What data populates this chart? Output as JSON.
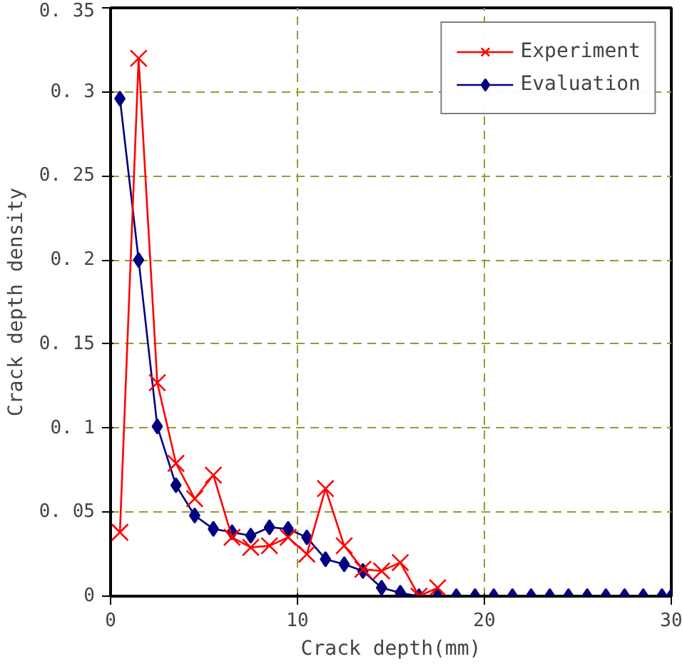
{
  "chart_data": {
    "type": "line",
    "xlabel": "Crack depth(mm)",
    "ylabel": "Crack depth density",
    "xlim": [
      0,
      30
    ],
    "ylim": [
      0,
      0.35
    ],
    "xticks": [
      0,
      10,
      20,
      30
    ],
    "yticks": [
      0,
      0.05,
      0.1,
      0.15,
      0.2,
      0.25,
      0.3,
      0.35
    ],
    "grid": true,
    "legend": "top right",
    "series": [
      {
        "name": "Experiment",
        "color": "#ff0000",
        "marker": "cross",
        "x": [
          0.5,
          1.5,
          2.5,
          3.5,
          4.5,
          5.5,
          6.5,
          7.5,
          8.5,
          9.5,
          10.5,
          11.5,
          12.5,
          13.5,
          14.5,
          15.5,
          16.5,
          17.5
        ],
        "values": [
          0.038,
          0.32,
          0.127,
          0.079,
          0.058,
          0.072,
          0.035,
          0.029,
          0.03,
          0.035,
          0.025,
          0.064,
          0.03,
          0.016,
          0.015,
          0.02,
          0,
          0.005
        ]
      },
      {
        "name": "Evaluation",
        "color": "#000080",
        "marker": "diamond",
        "x": [
          0.5,
          1.5,
          2.5,
          3.5,
          4.5,
          5.5,
          6.5,
          7.5,
          8.5,
          9.5,
          10.5,
          11.5,
          12.5,
          13.5,
          14.5,
          15.5,
          16.5,
          17.5,
          18.5,
          19.5,
          20.5,
          21.5,
          22.5,
          23.5,
          24.5,
          25.5,
          26.5,
          27.5,
          28.5,
          29.5,
          30
        ],
        "values": [
          0.296,
          0.2,
          0.101,
          0.066,
          0.048,
          0.04,
          0.038,
          0.036,
          0.041,
          0.04,
          0.035,
          0.022,
          0.019,
          0.015,
          0.005,
          0.002,
          0,
          0,
          0,
          0,
          0,
          0,
          0,
          0,
          0,
          0,
          0,
          0,
          0,
          0,
          0
        ]
      }
    ]
  }
}
